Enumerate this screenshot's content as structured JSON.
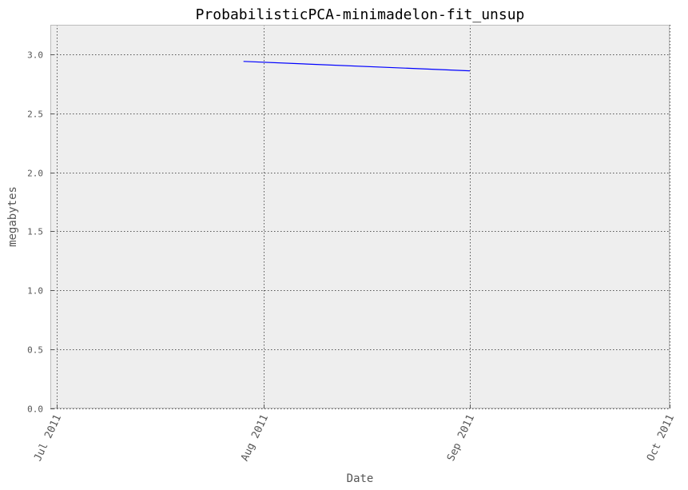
{
  "chart_data": {
    "type": "line",
    "title": "ProbabilisticPCA-minimadelon-fit_unsup",
    "xlabel": "Date",
    "ylabel": "megabytes",
    "x_axis_type": "date",
    "xlim": [
      "2011-06-30",
      "2011-10-01"
    ],
    "ylim": [
      0,
      3.25
    ],
    "x_ticks": [
      {
        "value": "2011-07-01",
        "label": "Jul 2011"
      },
      {
        "value": "2011-08-01",
        "label": "Aug 2011"
      },
      {
        "value": "2011-09-01",
        "label": "Sep 2011"
      },
      {
        "value": "2011-10-01",
        "label": "Oct 2011"
      }
    ],
    "y_ticks": [
      0.0,
      0.5,
      1.0,
      1.5,
      2.0,
      2.5,
      3.0
    ],
    "grid": true,
    "series": [
      {
        "color": "#0000ff",
        "points": [
          {
            "x": "2011-07-29",
            "y": 2.94
          },
          {
            "x": "2011-09-01",
            "y": 2.86
          }
        ]
      }
    ],
    "colors": {
      "plot_background": "#eeeeee",
      "frame": "#bcbcbc"
    }
  }
}
